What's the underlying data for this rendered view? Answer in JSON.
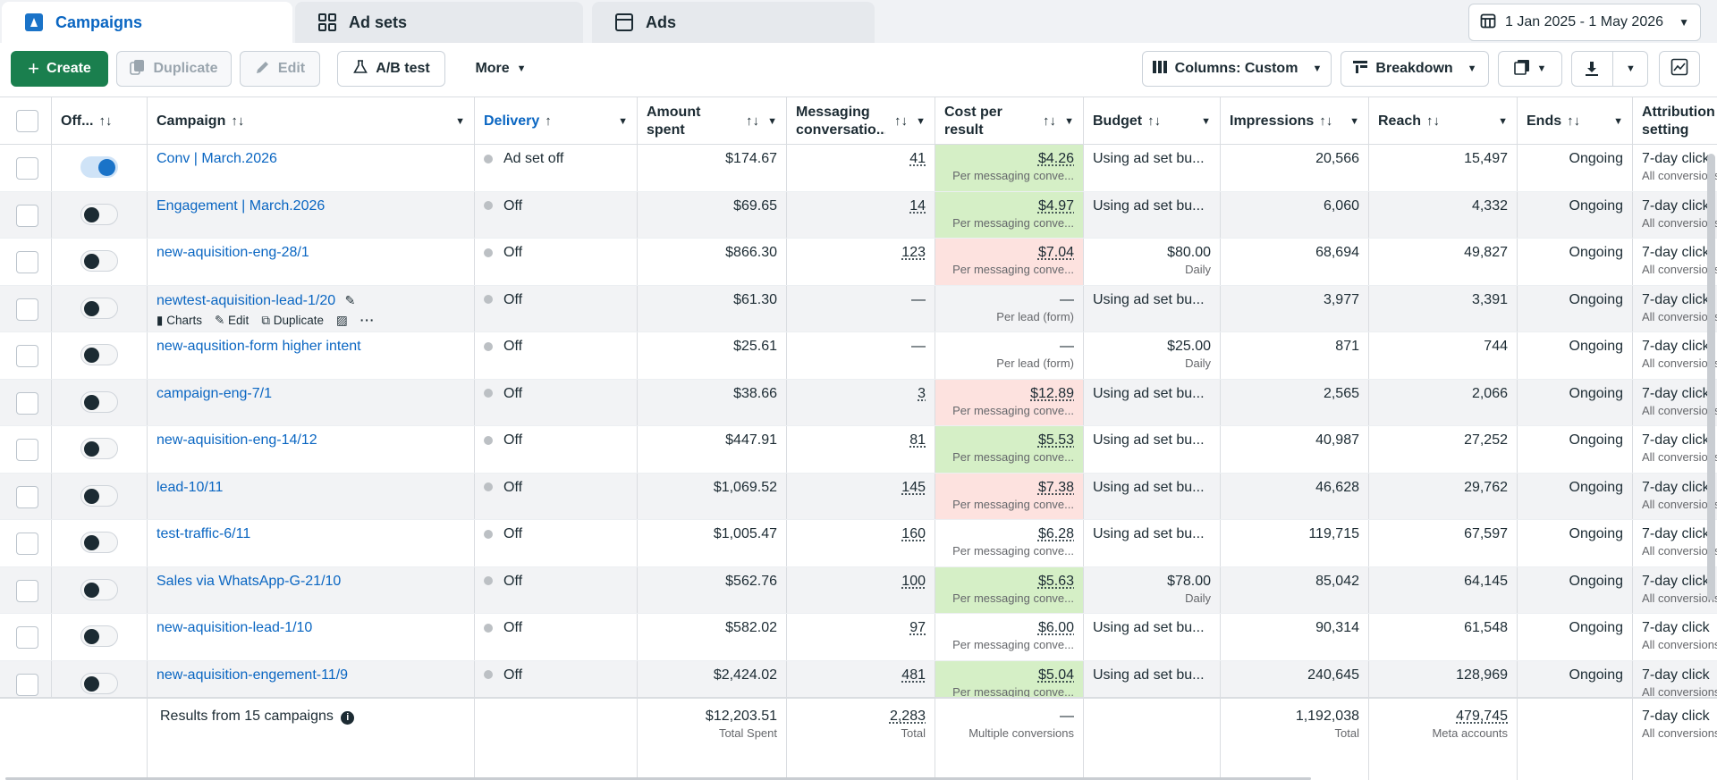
{
  "tabs": [
    {
      "label": "Campaigns",
      "icon": "campaign-flag-icon"
    },
    {
      "label": "Ad sets",
      "icon": "adsets-grid-icon"
    },
    {
      "label": "Ads",
      "icon": "ad-window-icon"
    }
  ],
  "date_range": "1 Jan 2025 - 1 May 2026",
  "toolbar": {
    "create": "Create",
    "duplicate": "Duplicate",
    "edit": "Edit",
    "ab_test": "A/B test",
    "more": "More",
    "columns": "Columns: Custom",
    "breakdown": "Breakdown"
  },
  "columns": {
    "off": "Off...",
    "campaign": "Campaign",
    "delivery": "Delivery",
    "amount_spent": "Amount spent",
    "messaging": "Messaging conversatio...",
    "cost_per_result": "Cost per result",
    "budget": "Budget",
    "impressions": "Impressions",
    "reach": "Reach",
    "ends": "Ends",
    "attribution": "Attribution setting"
  },
  "row_actions": {
    "charts": "Charts",
    "edit": "Edit",
    "duplicate": "Duplicate"
  },
  "rows": [
    {
      "name": "Conv | March.2026",
      "on": true,
      "delivery": "Ad set off",
      "spent": "$174.67",
      "msg": "41",
      "cpr": "$4.26",
      "cpr_sub": "Per messaging conve...",
      "cpr_tone": "good",
      "budget": "Using ad set bu...",
      "budget_sub": "",
      "impr": "20,566",
      "reach": "15,497",
      "ends": "Ongoing",
      "attr": "7-day click",
      "attr_sub": "All conversions"
    },
    {
      "name": "Engagement | March.2026",
      "on": false,
      "delivery": "Off",
      "spent": "$69.65",
      "msg": "14",
      "cpr": "$4.97",
      "cpr_sub": "Per messaging conve...",
      "cpr_tone": "good",
      "budget": "Using ad set bu...",
      "budget_sub": "",
      "impr": "6,060",
      "reach": "4,332",
      "ends": "Ongoing",
      "attr": "7-day click",
      "attr_sub": "All conversions"
    },
    {
      "name": "new-aquisition-eng-28/1",
      "on": false,
      "delivery": "Off",
      "spent": "$866.30",
      "msg": "123",
      "cpr": "$7.04",
      "cpr_sub": "Per messaging conve...",
      "cpr_tone": "bad",
      "budget": "$80.00",
      "budget_sub": "Daily",
      "impr": "68,694",
      "reach": "49,827",
      "ends": "Ongoing",
      "attr": "7-day click",
      "attr_sub": "All conversions"
    },
    {
      "name": "newtest-aquisition-lead-1/20",
      "on": false,
      "delivery": "Off",
      "spent": "$61.30",
      "msg": "—",
      "cpr": "—",
      "cpr_sub": "Per lead (form)",
      "cpr_tone": "",
      "budget": "Using ad set bu...",
      "budget_sub": "",
      "impr": "3,977",
      "reach": "3,391",
      "ends": "Ongoing",
      "attr": "7-day click",
      "attr_sub": "All conversions",
      "hover": true
    },
    {
      "name": "new-aqusition-form higher intent",
      "on": false,
      "delivery": "Off",
      "spent": "$25.61",
      "msg": "—",
      "cpr": "—",
      "cpr_sub": "Per lead (form)",
      "cpr_tone": "",
      "budget": "$25.00",
      "budget_sub": "Daily",
      "impr": "871",
      "reach": "744",
      "ends": "Ongoing",
      "attr": "7-day click",
      "attr_sub": "All conversions"
    },
    {
      "name": "campaign-eng-7/1",
      "on": false,
      "delivery": "Off",
      "spent": "$38.66",
      "msg": "3",
      "cpr": "$12.89",
      "cpr_sub": "Per messaging conve...",
      "cpr_tone": "bad",
      "budget": "Using ad set bu...",
      "budget_sub": "",
      "impr": "2,565",
      "reach": "2,066",
      "ends": "Ongoing",
      "attr": "7-day click",
      "attr_sub": "All conversions"
    },
    {
      "name": "new-aquisition-eng-14/12",
      "on": false,
      "delivery": "Off",
      "spent": "$447.91",
      "msg": "81",
      "cpr": "$5.53",
      "cpr_sub": "Per messaging conve...",
      "cpr_tone": "good",
      "budget": "Using ad set bu...",
      "budget_sub": "",
      "impr": "40,987",
      "reach": "27,252",
      "ends": "Ongoing",
      "attr": "7-day click",
      "attr_sub": "All conversions"
    },
    {
      "name": "lead-10/11",
      "on": false,
      "delivery": "Off",
      "spent": "$1,069.52",
      "msg": "145",
      "cpr": "$7.38",
      "cpr_sub": "Per messaging conve...",
      "cpr_tone": "bad",
      "budget": "Using ad set bu...",
      "budget_sub": "",
      "impr": "46,628",
      "reach": "29,762",
      "ends": "Ongoing",
      "attr": "7-day click",
      "attr_sub": "All conversions"
    },
    {
      "name": "test-traffic-6/11",
      "on": false,
      "delivery": "Off",
      "spent": "$1,005.47",
      "msg": "160",
      "cpr": "$6.28",
      "cpr_sub": "Per messaging conve...",
      "cpr_tone": "",
      "budget": "Using ad set bu...",
      "budget_sub": "",
      "impr": "119,715",
      "reach": "67,597",
      "ends": "Ongoing",
      "attr": "7-day click",
      "attr_sub": "All conversions"
    },
    {
      "name": "Sales via WhatsApp-G-21/10",
      "on": false,
      "delivery": "Off",
      "spent": "$562.76",
      "msg": "100",
      "cpr": "$5.63",
      "cpr_sub": "Per messaging conve...",
      "cpr_tone": "good",
      "budget": "$78.00",
      "budget_sub": "Daily",
      "impr": "85,042",
      "reach": "64,145",
      "ends": "Ongoing",
      "attr": "7-day click",
      "attr_sub": "All conversions"
    },
    {
      "name": "new-aquisition-lead-1/10",
      "on": false,
      "delivery": "Off",
      "spent": "$582.02",
      "msg": "97",
      "cpr": "$6.00",
      "cpr_sub": "Per messaging conve...",
      "cpr_tone": "",
      "budget": "Using ad set bu...",
      "budget_sub": "",
      "impr": "90,314",
      "reach": "61,548",
      "ends": "Ongoing",
      "attr": "7-day click",
      "attr_sub": "All conversions"
    },
    {
      "name": "new-aquisition-engement-11/9",
      "on": false,
      "delivery": "Off",
      "spent": "$2,424.02",
      "msg": "481",
      "cpr": "$5.04",
      "cpr_sub": "Per messaging conve...",
      "cpr_tone": "good",
      "budget": "Using ad set bu...",
      "budget_sub": "",
      "impr": "240,645",
      "reach": "128,969",
      "ends": "Ongoing",
      "attr": "7-day click",
      "attr_sub": "All conversions"
    }
  ],
  "totals": {
    "label": "Results from 15 campaigns",
    "spent": "$12,203.51",
    "spent_sub": "Total Spent",
    "msg": "2,283",
    "msg_sub": "Total",
    "cpr": "—",
    "cpr_sub": "Multiple conversions",
    "impr": "1,192,038",
    "impr_sub": "Total",
    "reach": "479,745",
    "reach_sub": "Meta accounts",
    "attr": "7-day click",
    "attr_sub": "All conversions"
  },
  "colors": {
    "accent": "#0a66c2",
    "create_green": "#1a7f4e",
    "good_cell": "#d5efc6",
    "bad_cell": "#fde2df"
  }
}
